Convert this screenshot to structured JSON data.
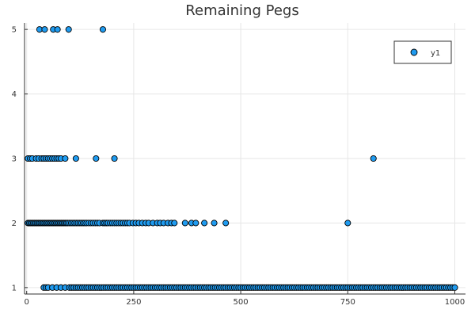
{
  "chart_data": {
    "type": "scatter",
    "title": "Remaining Pegs",
    "xlabel": "",
    "ylabel": "",
    "xlim": [
      -5,
      1025
    ],
    "ylim": [
      0.9,
      5.1
    ],
    "x_ticks": [
      0,
      250,
      500,
      750,
      1000
    ],
    "y_ticks": [
      1,
      2,
      3,
      4,
      5
    ],
    "grid": true,
    "legend_position": "top-right",
    "marker_color": "#1f9bf0",
    "series": [
      {
        "name": "y1",
        "points": [
          [
            30,
            5
          ],
          [
            42,
            5
          ],
          [
            62,
            5
          ],
          [
            72,
            5
          ],
          [
            98,
            5
          ],
          [
            178,
            5
          ],
          [
            3,
            3
          ],
          [
            8,
            3
          ],
          [
            13,
            3
          ],
          [
            22,
            3
          ],
          [
            28,
            3
          ],
          [
            35,
            3
          ],
          [
            40,
            3
          ],
          [
            45,
            3
          ],
          [
            50,
            3
          ],
          [
            55,
            3
          ],
          [
            60,
            3
          ],
          [
            65,
            3
          ],
          [
            70,
            3
          ],
          [
            75,
            3
          ],
          [
            80,
            3
          ],
          [
            90,
            3
          ],
          [
            115,
            3
          ],
          [
            162,
            3
          ],
          [
            205,
            3
          ],
          [
            810,
            3
          ],
          [
            3,
            2
          ],
          [
            6,
            2
          ],
          [
            9,
            2
          ],
          [
            12,
            2
          ],
          [
            15,
            2
          ],
          [
            18,
            2
          ],
          [
            21,
            2
          ],
          [
            24,
            2
          ],
          [
            27,
            2
          ],
          [
            30,
            2
          ],
          [
            33,
            2
          ],
          [
            36,
            2
          ],
          [
            39,
            2
          ],
          [
            42,
            2
          ],
          [
            45,
            2
          ],
          [
            48,
            2
          ],
          [
            51,
            2
          ],
          [
            54,
            2
          ],
          [
            57,
            2
          ],
          [
            60,
            2
          ],
          [
            63,
            2
          ],
          [
            66,
            2
          ],
          [
            69,
            2
          ],
          [
            72,
            2
          ],
          [
            75,
            2
          ],
          [
            78,
            2
          ],
          [
            81,
            2
          ],
          [
            84,
            2
          ],
          [
            87,
            2
          ],
          [
            90,
            2
          ],
          [
            93,
            2
          ],
          [
            96,
            2
          ],
          [
            100,
            2
          ],
          [
            104,
            2
          ],
          [
            108,
            2
          ],
          [
            112,
            2
          ],
          [
            116,
            2
          ],
          [
            120,
            2
          ],
          [
            124,
            2
          ],
          [
            128,
            2
          ],
          [
            132,
            2
          ],
          [
            136,
            2
          ],
          [
            140,
            2
          ],
          [
            145,
            2
          ],
          [
            150,
            2
          ],
          [
            155,
            2
          ],
          [
            160,
            2
          ],
          [
            165,
            2
          ],
          [
            170,
            2
          ],
          [
            178,
            2
          ],
          [
            182,
            2
          ],
          [
            186,
            2
          ],
          [
            190,
            2
          ],
          [
            195,
            2
          ],
          [
            200,
            2
          ],
          [
            205,
            2
          ],
          [
            210,
            2
          ],
          [
            215,
            2
          ],
          [
            220,
            2
          ],
          [
            225,
            2
          ],
          [
            230,
            2
          ],
          [
            235,
            2
          ],
          [
            240,
            2
          ],
          [
            248,
            2
          ],
          [
            255,
            2
          ],
          [
            262,
            2
          ],
          [
            270,
            2
          ],
          [
            278,
            2
          ],
          [
            285,
            2
          ],
          [
            295,
            2
          ],
          [
            305,
            2
          ],
          [
            312,
            2
          ],
          [
            320,
            2
          ],
          [
            330,
            2
          ],
          [
            338,
            2
          ],
          [
            345,
            2
          ],
          [
            370,
            2
          ],
          [
            385,
            2
          ],
          [
            395,
            2
          ],
          [
            415,
            2
          ],
          [
            438,
            2
          ],
          [
            465,
            2
          ],
          [
            750,
            2
          ],
          [
            40,
            1
          ],
          [
            45,
            1
          ],
          [
            50,
            1
          ],
          [
            60,
            1
          ],
          [
            70,
            1
          ],
          [
            80,
            1
          ],
          [
            90,
            1
          ],
          [
            100,
            1
          ],
          [
            105,
            1
          ],
          [
            110,
            1
          ],
          [
            115,
            1
          ],
          [
            120,
            1
          ],
          [
            125,
            1
          ],
          [
            130,
            1
          ],
          [
            135,
            1
          ],
          [
            140,
            1
          ],
          [
            145,
            1
          ],
          [
            150,
            1
          ],
          [
            155,
            1
          ],
          [
            160,
            1
          ],
          [
            165,
            1
          ],
          [
            170,
            1
          ],
          [
            175,
            1
          ],
          [
            180,
            1
          ],
          [
            185,
            1
          ],
          [
            190,
            1
          ],
          [
            195,
            1
          ],
          [
            200,
            1
          ],
          [
            205,
            1
          ],
          [
            210,
            1
          ],
          [
            215,
            1
          ],
          [
            220,
            1
          ],
          [
            225,
            1
          ],
          [
            230,
            1
          ],
          [
            235,
            1
          ],
          [
            240,
            1
          ],
          [
            245,
            1
          ],
          [
            250,
            1
          ],
          [
            255,
            1
          ],
          [
            260,
            1
          ],
          [
            265,
            1
          ],
          [
            270,
            1
          ],
          [
            275,
            1
          ],
          [
            280,
            1
          ],
          [
            285,
            1
          ],
          [
            290,
            1
          ],
          [
            295,
            1
          ],
          [
            300,
            1
          ],
          [
            305,
            1
          ],
          [
            310,
            1
          ],
          [
            315,
            1
          ],
          [
            320,
            1
          ],
          [
            325,
            1
          ],
          [
            330,
            1
          ],
          [
            335,
            1
          ],
          [
            340,
            1
          ],
          [
            345,
            1
          ],
          [
            350,
            1
          ],
          [
            355,
            1
          ],
          [
            360,
            1
          ],
          [
            365,
            1
          ],
          [
            370,
            1
          ],
          [
            375,
            1
          ],
          [
            380,
            1
          ],
          [
            385,
            1
          ],
          [
            390,
            1
          ],
          [
            395,
            1
          ],
          [
            400,
            1
          ],
          [
            405,
            1
          ],
          [
            410,
            1
          ],
          [
            415,
            1
          ],
          [
            420,
            1
          ],
          [
            425,
            1
          ],
          [
            430,
            1
          ],
          [
            435,
            1
          ],
          [
            440,
            1
          ],
          [
            445,
            1
          ],
          [
            450,
            1
          ],
          [
            455,
            1
          ],
          [
            460,
            1
          ],
          [
            465,
            1
          ],
          [
            470,
            1
          ],
          [
            475,
            1
          ],
          [
            480,
            1
          ],
          [
            485,
            1
          ],
          [
            490,
            1
          ],
          [
            495,
            1
          ],
          [
            500,
            1
          ],
          [
            505,
            1
          ],
          [
            510,
            1
          ],
          [
            515,
            1
          ],
          [
            520,
            1
          ],
          [
            525,
            1
          ],
          [
            530,
            1
          ],
          [
            535,
            1
          ],
          [
            540,
            1
          ],
          [
            545,
            1
          ],
          [
            550,
            1
          ],
          [
            555,
            1
          ],
          [
            560,
            1
          ],
          [
            565,
            1
          ],
          [
            570,
            1
          ],
          [
            575,
            1
          ],
          [
            580,
            1
          ],
          [
            585,
            1
          ],
          [
            590,
            1
          ],
          [
            595,
            1
          ],
          [
            600,
            1
          ],
          [
            605,
            1
          ],
          [
            610,
            1
          ],
          [
            615,
            1
          ],
          [
            620,
            1
          ],
          [
            625,
            1
          ],
          [
            630,
            1
          ],
          [
            635,
            1
          ],
          [
            640,
            1
          ],
          [
            645,
            1
          ],
          [
            650,
            1
          ],
          [
            655,
            1
          ],
          [
            660,
            1
          ],
          [
            665,
            1
          ],
          [
            670,
            1
          ],
          [
            675,
            1
          ],
          [
            680,
            1
          ],
          [
            685,
            1
          ],
          [
            690,
            1
          ],
          [
            695,
            1
          ],
          [
            700,
            1
          ],
          [
            705,
            1
          ],
          [
            710,
            1
          ],
          [
            715,
            1
          ],
          [
            720,
            1
          ],
          [
            725,
            1
          ],
          [
            730,
            1
          ],
          [
            735,
            1
          ],
          [
            740,
            1
          ],
          [
            745,
            1
          ],
          [
            750,
            1
          ],
          [
            755,
            1
          ],
          [
            760,
            1
          ],
          [
            765,
            1
          ],
          [
            770,
            1
          ],
          [
            775,
            1
          ],
          [
            780,
            1
          ],
          [
            785,
            1
          ],
          [
            790,
            1
          ],
          [
            795,
            1
          ],
          [
            800,
            1
          ],
          [
            805,
            1
          ],
          [
            810,
            1
          ],
          [
            815,
            1
          ],
          [
            820,
            1
          ],
          [
            825,
            1
          ],
          [
            830,
            1
          ],
          [
            835,
            1
          ],
          [
            840,
            1
          ],
          [
            845,
            1
          ],
          [
            850,
            1
          ],
          [
            855,
            1
          ],
          [
            860,
            1
          ],
          [
            865,
            1
          ],
          [
            870,
            1
          ],
          [
            875,
            1
          ],
          [
            880,
            1
          ],
          [
            885,
            1
          ],
          [
            890,
            1
          ],
          [
            895,
            1
          ],
          [
            900,
            1
          ],
          [
            905,
            1
          ],
          [
            910,
            1
          ],
          [
            915,
            1
          ],
          [
            920,
            1
          ],
          [
            925,
            1
          ],
          [
            930,
            1
          ],
          [
            935,
            1
          ],
          [
            940,
            1
          ],
          [
            945,
            1
          ],
          [
            950,
            1
          ],
          [
            955,
            1
          ],
          [
            960,
            1
          ],
          [
            965,
            1
          ],
          [
            970,
            1
          ],
          [
            975,
            1
          ],
          [
            980,
            1
          ],
          [
            985,
            1
          ],
          [
            990,
            1
          ],
          [
            995,
            1
          ],
          [
            1000,
            1
          ]
        ]
      }
    ]
  }
}
